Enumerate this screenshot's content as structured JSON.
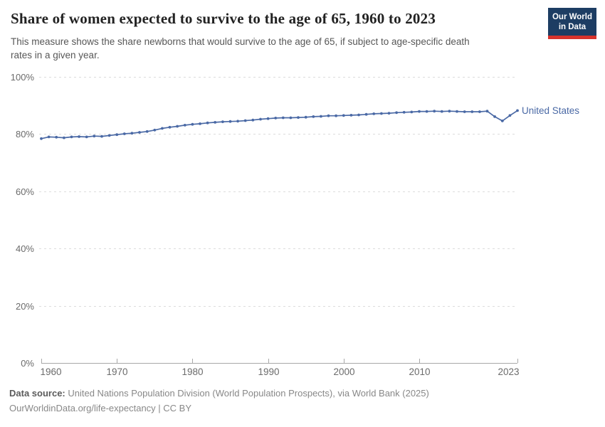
{
  "header": {
    "title": "Share of women expected to survive to the age of 65, 1960 to 2023",
    "subtitle": "This measure shows the share newborns that would survive to the age of 65, if subject to age-specific death\nrates in a given year.",
    "logo": {
      "line1": "Our World",
      "line2": "in Data"
    }
  },
  "chart_data": {
    "type": "line",
    "title": "Share of women expected to survive to the age of 65, 1960 to 2023",
    "xlabel": "",
    "ylabel": "",
    "xlim": [
      1960,
      2023
    ],
    "ylim": [
      0,
      100
    ],
    "xticks": [
      1960,
      1970,
      1980,
      1990,
      2000,
      2010,
      2023
    ],
    "yticks": [
      0,
      20,
      40,
      60,
      80,
      100
    ],
    "ytick_suffix": "%",
    "grid": "horizontal-dashed",
    "legend_position": "end-of-line-label",
    "x": [
      1960,
      1961,
      1962,
      1963,
      1964,
      1965,
      1966,
      1967,
      1968,
      1969,
      1970,
      1971,
      1972,
      1973,
      1974,
      1975,
      1976,
      1977,
      1978,
      1979,
      1980,
      1981,
      1982,
      1983,
      1984,
      1985,
      1986,
      1987,
      1988,
      1989,
      1990,
      1991,
      1992,
      1993,
      1994,
      1995,
      1996,
      1997,
      1998,
      1999,
      2000,
      2001,
      2002,
      2003,
      2004,
      2005,
      2006,
      2007,
      2008,
      2009,
      2010,
      2011,
      2012,
      2013,
      2014,
      2015,
      2016,
      2017,
      2018,
      2019,
      2020,
      2021,
      2022,
      2023
    ],
    "series": [
      {
        "name": "United States",
        "color": "#4a69a5",
        "values": [
          78.4,
          79.0,
          78.9,
          78.7,
          79.0,
          79.1,
          79.0,
          79.3,
          79.2,
          79.5,
          79.8,
          80.1,
          80.3,
          80.6,
          80.9,
          81.4,
          82.0,
          82.4,
          82.7,
          83.1,
          83.4,
          83.6,
          83.9,
          84.1,
          84.3,
          84.4,
          84.5,
          84.7,
          84.9,
          85.2,
          85.4,
          85.6,
          85.7,
          85.7,
          85.8,
          85.9,
          86.1,
          86.2,
          86.4,
          86.4,
          86.5,
          86.6,
          86.7,
          86.9,
          87.1,
          87.2,
          87.3,
          87.5,
          87.6,
          87.7,
          87.9,
          87.9,
          88.0,
          87.9,
          88.0,
          87.9,
          87.8,
          87.8,
          87.8,
          88.0,
          86.1,
          84.6,
          86.5,
          88.2
        ]
      }
    ]
  },
  "footer": {
    "datasource_label": "Data source:",
    "datasource_text": " United Nations Population Division (World Population Prospects), via World Bank (2025)",
    "link_line": "OurWorldinData.org/life-expectancy | CC BY"
  },
  "colors": {
    "line": "#4a69a5",
    "gridline": "#dcdcdc",
    "axis": "#a8a8a8",
    "tick_label": "#6b6b6b",
    "logo_bg": "#1d3d63",
    "logo_accent": "#d7332c"
  }
}
